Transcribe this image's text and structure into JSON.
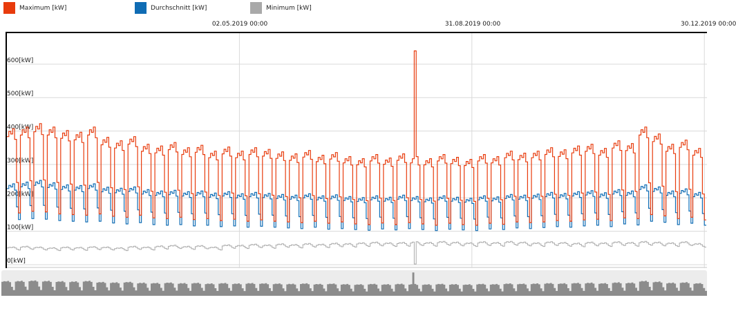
{
  "legend": {
    "items": [
      {
        "label": "Maximum [kW]",
        "color": "#e83b0c"
      },
      {
        "label": "Durchschnitt [kW]",
        "color": "#0f6cb4"
      },
      {
        "label": "Minimum [kW]",
        "color": "#a9a9a9"
      }
    ]
  },
  "colors": {
    "grid": "#d9d9d9",
    "border": "#000000",
    "bottom_border": "#c4c4c4",
    "text": "#1a1a1a",
    "plot_bg": "#ffffff"
  },
  "navigator": {
    "bg": "#ececec",
    "fill": "#8c8c8c",
    "source_series": "Maximum [kW]"
  },
  "chart_data": {
    "type": "line",
    "step": true,
    "title": "",
    "xlabel": "",
    "ylabel": "kW",
    "x_range": [
      "01.01.2019",
      "31.12.2019"
    ],
    "x_tick_labels": [
      "02.05.2019 00:00",
      "31.08.2019 00:00",
      "30.12.2019 00:00"
    ],
    "x_tick_days": [
      121,
      242,
      363
    ],
    "y_ticks": [
      600,
      500,
      400,
      300,
      200,
      100,
      0
    ],
    "y_tick_labels": [
      "600[kW]",
      "500[kW]",
      "400[kW]",
      "300[kW]",
      "200[kW]",
      "100[kW]",
      "0[kW]"
    ],
    "ylim": [
      0,
      700
    ],
    "grid": true,
    "legend_position": "top",
    "series": [
      {
        "name": "Maximum [kW]",
        "color": "#e83b0c",
        "width": 1.2
      },
      {
        "name": "Durchschnitt [kW]",
        "color": "#0f6cb4",
        "width": 1.2
      },
      {
        "name": "Minimum [kW]",
        "color": "#a9a9a9",
        "width": 1
      }
    ],
    "num_weeks": 52,
    "days_per_week": 7,
    "series_columns": [
      "max_weekday_kw",
      "max_weekend_kw",
      "avg_weekday_kw",
      "avg_weekend_kw",
      "min_kw"
    ],
    "weeks": [
      [
        395,
        155,
        235,
        135,
        50
      ],
      [
        400,
        160,
        240,
        138,
        52
      ],
      [
        410,
        158,
        245,
        136,
        50
      ],
      [
        400,
        152,
        238,
        132,
        48
      ],
      [
        390,
        150,
        232,
        130,
        50
      ],
      [
        385,
        148,
        230,
        128,
        49
      ],
      [
        400,
        152,
        235,
        130,
        51
      ],
      [
        370,
        145,
        225,
        125,
        50
      ],
      [
        360,
        142,
        222,
        122,
        48
      ],
      [
        372,
        148,
        226,
        126,
        52
      ],
      [
        350,
        140,
        218,
        120,
        50
      ],
      [
        345,
        138,
        214,
        118,
        53
      ],
      [
        355,
        142,
        216,
        120,
        55
      ],
      [
        340,
        135,
        212,
        116,
        52
      ],
      [
        347,
        138,
        214,
        118,
        54
      ],
      [
        330,
        132,
        208,
        114,
        50
      ],
      [
        342,
        136,
        212,
        116,
        56
      ],
      [
        330,
        130,
        206,
        112,
        55
      ],
      [
        340,
        134,
        210,
        115,
        58
      ],
      [
        335,
        130,
        207,
        112,
        56
      ],
      [
        328,
        128,
        204,
        110,
        59
      ],
      [
        322,
        126,
        202,
        108,
        57
      ],
      [
        332,
        130,
        206,
        112,
        60
      ],
      [
        318,
        124,
        200,
        106,
        58
      ],
      [
        326,
        128,
        203,
        108,
        61
      ],
      [
        314,
        122,
        198,
        105,
        60
      ],
      [
        308,
        120,
        195,
        103,
        62
      ],
      [
        320,
        125,
        200,
        107,
        64
      ],
      [
        310,
        120,
        196,
        104,
        62
      ],
      [
        322,
        126,
        202,
        108,
        63
      ],
      [
        314,
        122,
        198,
        105,
        65
      ],
      [
        308,
        118,
        194,
        102,
        63
      ],
      [
        320,
        124,
        200,
        106,
        66
      ],
      [
        312,
        120,
        196,
        104,
        64
      ],
      [
        306,
        118,
        193,
        102,
        62
      ],
      [
        320,
        124,
        200,
        107,
        65
      ],
      [
        314,
        121,
        197,
        105,
        63
      ],
      [
        330,
        128,
        204,
        110,
        66
      ],
      [
        324,
        126,
        202,
        108,
        64
      ],
      [
        330,
        128,
        205,
        111,
        62
      ],
      [
        340,
        132,
        210,
        114,
        65
      ],
      [
        334,
        130,
        207,
        112,
        63
      ],
      [
        345,
        134,
        212,
        116,
        61
      ],
      [
        350,
        136,
        215,
        118,
        64
      ],
      [
        338,
        132,
        209,
        114,
        62
      ],
      [
        360,
        140,
        218,
        122,
        65
      ],
      [
        352,
        138,
        214,
        119,
        63
      ],
      [
        400,
        150,
        232,
        130,
        66
      ],
      [
        380,
        146,
        226,
        127,
        64
      ],
      [
        350,
        138,
        214,
        120,
        62
      ],
      [
        362,
        142,
        220,
        124,
        65
      ],
      [
        338,
        134,
        210,
        118,
        60
      ]
    ],
    "weekday_mult": [
      0.97,
      1.01,
      0.99,
      1.03,
      0.95
    ],
    "sat_frac": 0.38,
    "min_weekday_mult": [
      1.0,
      1.04,
      1.02,
      1.06,
      1.0
    ],
    "min_sat_mult": 0.92,
    "min_sun_mult": 0.88,
    "spike": {
      "day_index": 212,
      "max_value": 640,
      "min_value": 2
    }
  }
}
